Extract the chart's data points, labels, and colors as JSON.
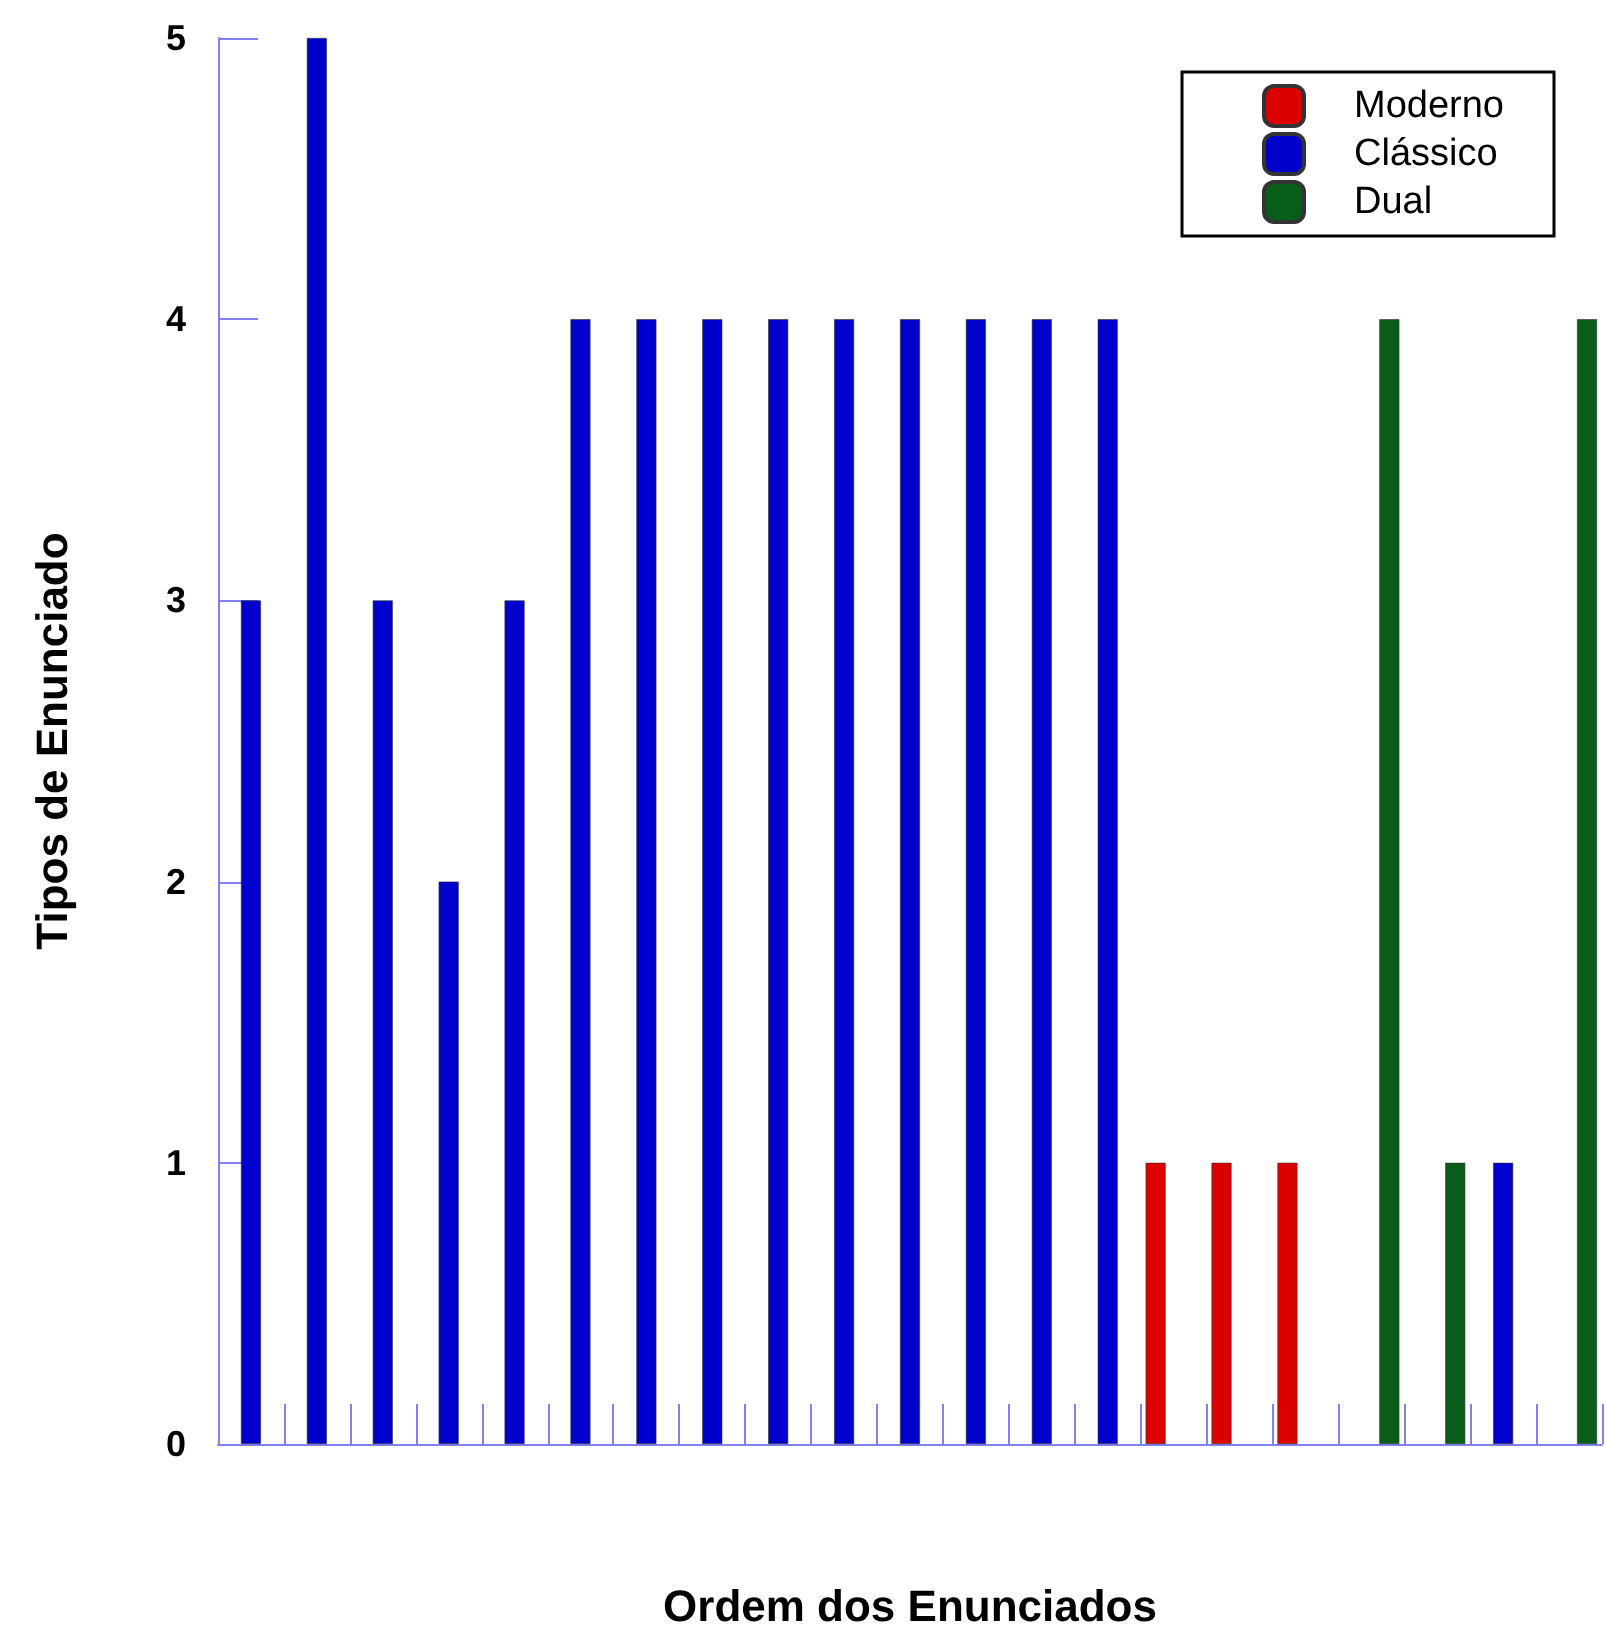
{
  "chart_data": {
    "type": "bar",
    "xlabel": "Ordem dos Enunciados",
    "ylabel": "Tipos de Enunciado",
    "categories": [
      null,
      null,
      null,
      null,
      null,
      null,
      null,
      null,
      null,
      null,
      null,
      null,
      null,
      null,
      null,
      null,
      null,
      null,
      null,
      null,
      null
    ],
    "series": [
      {
        "name": "Moderno",
        "color": "#dd0000",
        "values": [
          null,
          null,
          null,
          null,
          null,
          null,
          null,
          null,
          null,
          null,
          null,
          null,
          null,
          null,
          1,
          1,
          1,
          null,
          null,
          null,
          null
        ]
      },
      {
        "name": "Clássico",
        "color": "#0000cc",
        "values": [
          3,
          5,
          3,
          2,
          3,
          4,
          4,
          4,
          4,
          4,
          4,
          4,
          4,
          4,
          null,
          null,
          null,
          null,
          null,
          1,
          null
        ]
      },
      {
        "name": "Dual",
        "color": "#085e18",
        "values": [
          null,
          null,
          null,
          null,
          null,
          null,
          null,
          null,
          null,
          null,
          null,
          null,
          null,
          null,
          null,
          null,
          null,
          4,
          1,
          null,
          4
        ]
      }
    ],
    "ylim": [
      0,
      5
    ],
    "yticks": [
      0,
      1,
      2,
      3,
      4,
      5
    ],
    "grid": false,
    "legend": "top right"
  }
}
